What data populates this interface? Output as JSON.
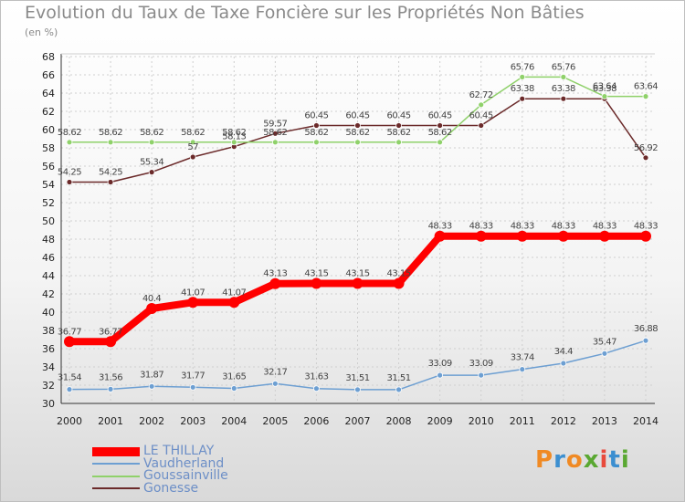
{
  "header": {
    "title": "Evolution du Taux de Taxe Foncière sur les Propriétés Non Bâties",
    "subtitle": "(en %)"
  },
  "logo": {
    "text": "Proxiti",
    "colors": [
      "#f08a24",
      "#3c8fd0",
      "#f08a24",
      "#5aa832",
      "#e84a3c",
      "#3c8fd0",
      "#5aa832"
    ]
  },
  "chart_data": {
    "type": "line",
    "title": "Evolution du Taux de Taxe Foncière sur les Propriétés Non Bâties",
    "ylabel": "(en %)",
    "xlabel": "",
    "x": [
      "2000",
      "2001",
      "2002",
      "2003",
      "2004",
      "2005",
      "2006",
      "2007",
      "2008",
      "2009",
      "2010",
      "2011",
      "2012",
      "2013",
      "2014"
    ],
    "ylim": [
      30,
      68
    ],
    "yticks": [
      30,
      32,
      34,
      36,
      38,
      40,
      42,
      44,
      46,
      48,
      50,
      52,
      54,
      56,
      58,
      60,
      62,
      64,
      66,
      68
    ],
    "grid": true,
    "legend_position": "bottom-left",
    "series": [
      {
        "name": "LE THILLAY",
        "color": "#ff0000",
        "values": [
          36.77,
          36.77,
          40.4,
          41.07,
          41.07,
          43.13,
          43.15,
          43.15,
          43.15,
          48.33,
          48.33,
          48.33,
          48.33,
          48.33,
          48.33
        ],
        "labels": [
          "36.77",
          "36.77",
          "40.4",
          "41.07",
          "41.07",
          "43.13",
          "43.15",
          "43.15",
          "43.15",
          "48.33",
          "48.33",
          "48.33",
          "48.33",
          "48.33",
          "48.33"
        ]
      },
      {
        "name": "Vaudherland",
        "color": "#6d9fd2",
        "values": [
          31.54,
          31.56,
          31.87,
          31.77,
          31.65,
          32.17,
          31.63,
          31.51,
          31.51,
          33.09,
          33.09,
          33.74,
          34.4,
          35.47,
          36.88
        ],
        "labels": [
          "31.54",
          "31.56",
          "31.87",
          "31.77",
          "31.65",
          "32.17",
          "31.63",
          "31.51",
          "31.51",
          "33.09",
          "33.09",
          "33.74",
          "34.4",
          "35.47",
          "36.88"
        ]
      },
      {
        "name": "Goussainville",
        "color": "#8fd16a",
        "values": [
          58.62,
          58.62,
          58.62,
          58.62,
          58.62,
          58.62,
          58.62,
          58.62,
          58.62,
          58.62,
          62.72,
          65.76,
          65.76,
          63.64,
          63.64
        ],
        "labels": [
          "58.62",
          "58.62",
          "58.62",
          "58.62",
          "58.62",
          "58.62",
          "58.62",
          "58.62",
          "58.62",
          "58.62",
          "62.72",
          "65.76",
          "65.76",
          "63.64",
          "63.64"
        ]
      },
      {
        "name": "Gonesse",
        "color": "#6b2a2a",
        "values": [
          54.25,
          54.25,
          55.34,
          57,
          58.13,
          59.57,
          60.45,
          60.45,
          60.45,
          60.45,
          60.45,
          63.38,
          63.38,
          63.38,
          56.92
        ],
        "labels": [
          "54.25",
          "54.25",
          "55.34",
          "57",
          "58.13",
          "59.57",
          "60.45",
          "60.45",
          "60.45",
          "60.45",
          "60.45",
          "63.38",
          "63.38",
          "63.38",
          "56.92"
        ]
      }
    ]
  }
}
